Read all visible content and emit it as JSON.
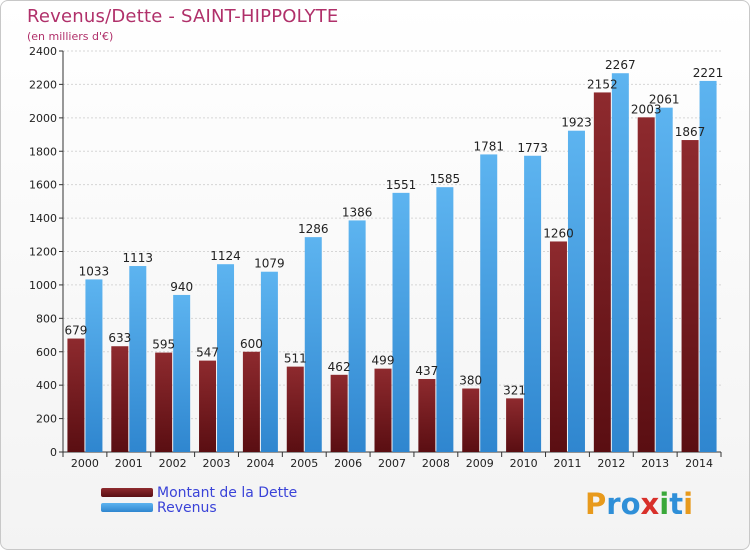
{
  "header": {
    "title": "Revenus/Dette - SAINT-HIPPOLYTE",
    "subtitle": "(en milliers d'€)"
  },
  "legend": {
    "items": [
      {
        "label": "Montant de la Dette",
        "color": "#7a1f23"
      },
      {
        "label": "Revenus",
        "color": "#4aa3e6"
      }
    ]
  },
  "logo": {
    "letters": [
      {
        "ch": "P",
        "color": "#e89a1c"
      },
      {
        "ch": "r",
        "color": "#2f8fd8"
      },
      {
        "ch": "o",
        "color": "#2f8fd8"
      },
      {
        "ch": "x",
        "color": "#d8302a"
      },
      {
        "ch": "i",
        "color": "#3aa83a"
      },
      {
        "ch": "t",
        "color": "#2f8fd8"
      },
      {
        "ch": "i",
        "color": "#e89a1c"
      }
    ]
  },
  "chart_data": {
    "type": "bar",
    "categories": [
      "2000",
      "2001",
      "2002",
      "2003",
      "2004",
      "2005",
      "2006",
      "2007",
      "2008",
      "2009",
      "2010",
      "2011",
      "2012",
      "2013",
      "2014"
    ],
    "series": [
      {
        "name": "Montant de la Dette",
        "values": [
          679,
          633,
          595,
          547,
          600,
          511,
          462,
          499,
          437,
          380,
          321,
          1260,
          2152,
          2003,
          1867
        ],
        "labels": [
          "679",
          "633",
          "595",
          "547",
          "600",
          "511",
          "462",
          "499",
          "437",
          "380",
          "321",
          "1260",
          "2152",
          "2003",
          "1867"
        ],
        "color": "#7a1f23"
      },
      {
        "name": "Revenus",
        "values": [
          1033,
          1113,
          940,
          1124,
          1079,
          1286,
          1386,
          1551,
          1585,
          1781,
          1773,
          1923,
          2267,
          2061,
          2221
        ],
        "labels": [
          "1033",
          "1113",
          "940",
          "1124",
          "1079",
          "1286",
          "1386",
          "1551",
          "1585",
          "1781",
          "1773",
          "1923",
          "2267",
          "2061",
          "2221"
        ],
        "color": "#4aa3e6"
      }
    ],
    "title": "Revenus/Dette - SAINT-HIPPOLYTE",
    "ylabel": "(en milliers d'€)",
    "ylim": [
      0,
      2400
    ],
    "yticks": [
      0,
      200,
      400,
      600,
      800,
      1000,
      1200,
      1400,
      1600,
      1800,
      2000,
      2200,
      2400
    ],
    "grid": true,
    "legend_position": "bottom-left"
  }
}
